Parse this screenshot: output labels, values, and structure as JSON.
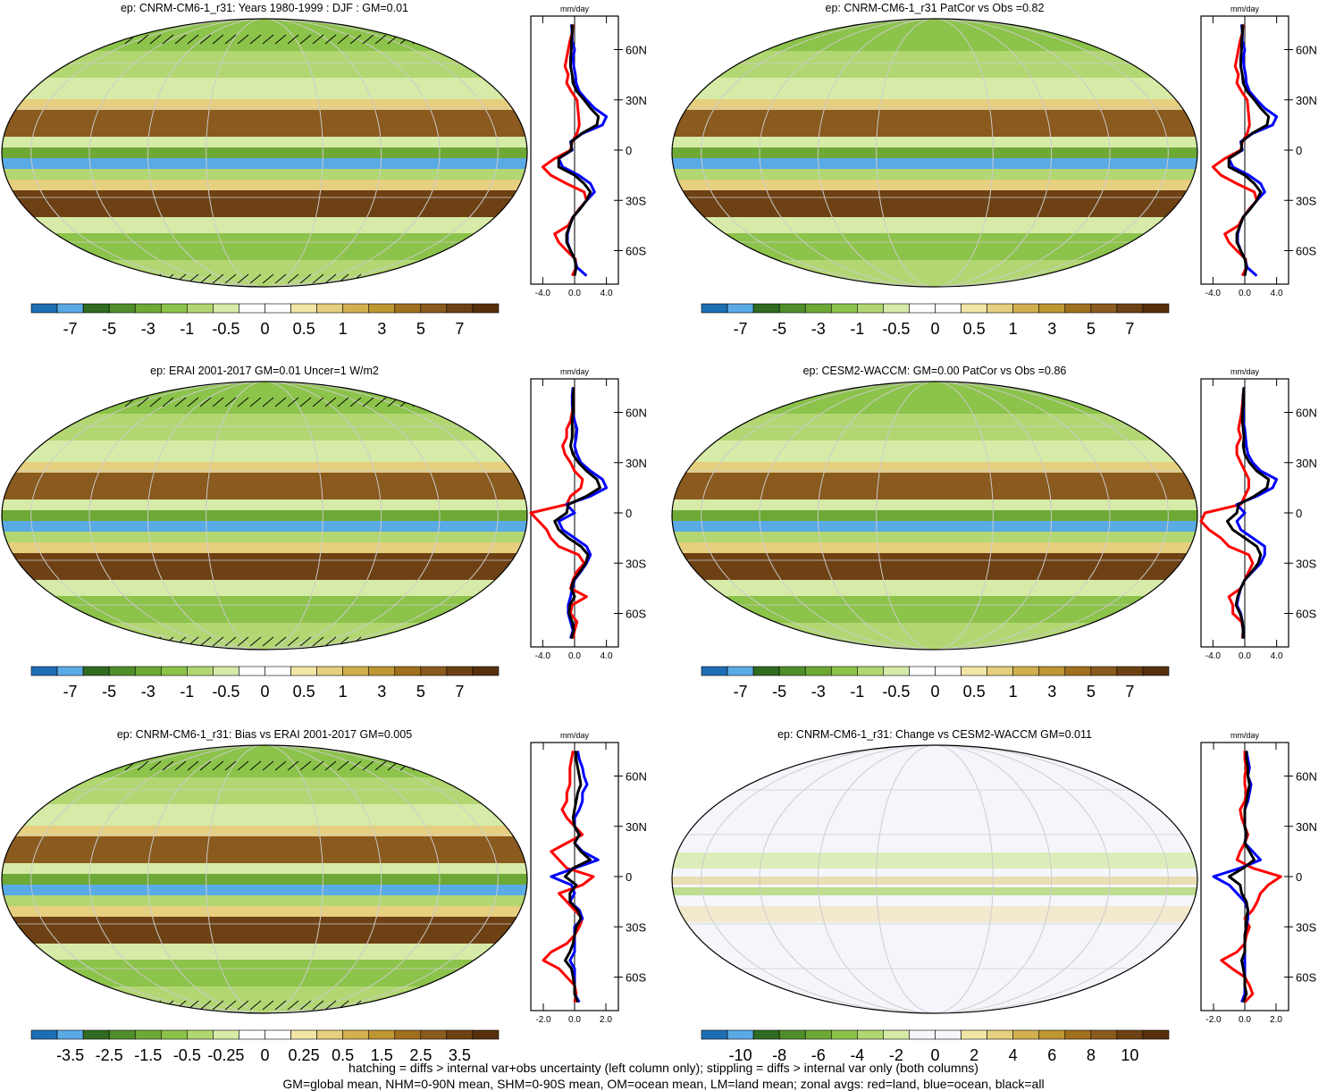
{
  "chart_data": {
    "type": "map_with_zonal_profiles",
    "panels": [
      {
        "title": "ep: CNRM-CM6-1_r31: Years 1980-1999 : DJF : GM=0.01",
        "colorbar_labels": [
          "-7",
          "-5",
          "-3",
          "-1",
          "-0.5",
          "0",
          "0.5",
          "1",
          "3",
          "5",
          "7"
        ],
        "palette": "drywet",
        "hatching": true,
        "profile": {
          "unit_label": "mm/day",
          "xticks": [
            "-4.0",
            "0.0",
            "4.0"
          ],
          "xlim": [
            -5.5,
            5.5
          ],
          "lat_ticks": [
            "60N",
            "30N",
            "0",
            "30S",
            "60S"
          ],
          "ylim": [
            -80,
            80
          ],
          "lat": [
            -75,
            -70,
            -65,
            -60,
            -55,
            -50,
            -45,
            -40,
            -35,
            -30,
            -25,
            -20,
            -15,
            -10,
            -5,
            0,
            5,
            10,
            15,
            20,
            25,
            30,
            35,
            40,
            45,
            50,
            55,
            60,
            65,
            70,
            75
          ],
          "land": [
            -0.3,
            0.2,
            0.1,
            -1.0,
            -2.0,
            -2.5,
            -0.8,
            -0.2,
            0.6,
            1.5,
            1.2,
            -1.0,
            -3.0,
            -4.0,
            -2.5,
            -0.5,
            -0.3,
            0.3,
            0.6,
            0.5,
            0.4,
            0.3,
            -0.4,
            -1.0,
            -0.8,
            -1.2,
            -1.0,
            -0.8,
            -0.6,
            -0.3,
            -0.2
          ],
          "ocean": [
            1.5,
            0.3,
            0.0,
            -0.5,
            -0.9,
            -0.9,
            -0.6,
            -0.2,
            0.7,
            1.5,
            2.5,
            2.0,
            0.5,
            -1.5,
            -2.0,
            -0.3,
            -0.5,
            1.0,
            3.5,
            4.0,
            2.5,
            1.5,
            0.6,
            0.2,
            0.1,
            -0.1,
            -0.2,
            0.0,
            -0.3,
            -0.3,
            -0.4
          ],
          "all": [
            0.0,
            0.2,
            0.0,
            -0.5,
            -1.0,
            -1.0,
            -0.6,
            -0.2,
            0.7,
            1.5,
            2.0,
            1.2,
            0.0,
            -2.0,
            -2.0,
            -0.4,
            -0.4,
            0.9,
            2.8,
            3.0,
            2.0,
            1.2,
            0.3,
            -0.2,
            -0.3,
            -0.5,
            -0.5,
            -0.4,
            -0.4,
            -0.3,
            -0.3
          ]
        }
      },
      {
        "title": "ep: CNRM-CM6-1_r31 PatCor vs Obs =0.82",
        "colorbar_labels": [
          "-7",
          "-5",
          "-3",
          "-1",
          "-0.5",
          "0",
          "0.5",
          "1",
          "3",
          "5",
          "7"
        ],
        "palette": "drywet",
        "hatching": false,
        "profile": {
          "unit_label": "mm/day",
          "xticks": [
            "-4.0",
            "0.0",
            "4.0"
          ],
          "xlim": [
            -5.5,
            5.5
          ],
          "lat_ticks": [
            "60N",
            "30N",
            "0",
            "30S",
            "60S"
          ],
          "ylim": [
            -80,
            80
          ],
          "lat": [
            -75,
            -70,
            -65,
            -60,
            -55,
            -50,
            -45,
            -40,
            -35,
            -30,
            -25,
            -20,
            -15,
            -10,
            -5,
            0,
            5,
            10,
            15,
            20,
            25,
            30,
            35,
            40,
            45,
            50,
            55,
            60,
            65,
            70,
            75
          ],
          "land": [
            -0.3,
            0.2,
            0.1,
            -1.0,
            -2.0,
            -2.5,
            -0.8,
            -0.2,
            0.6,
            1.5,
            1.2,
            -1.0,
            -3.0,
            -4.0,
            -2.5,
            -0.5,
            -0.3,
            0.3,
            0.6,
            0.5,
            0.4,
            0.3,
            -0.4,
            -1.0,
            -0.8,
            -1.2,
            -1.0,
            -0.8,
            -0.6,
            -0.3,
            -0.2
          ],
          "ocean": [
            1.5,
            0.3,
            0.0,
            -0.5,
            -0.9,
            -0.9,
            -0.6,
            -0.2,
            0.7,
            1.5,
            2.5,
            2.0,
            0.5,
            -1.5,
            -2.0,
            -0.3,
            -0.5,
            1.0,
            3.5,
            4.0,
            2.5,
            1.5,
            0.6,
            0.2,
            0.1,
            -0.1,
            -0.2,
            0.0,
            -0.3,
            -0.3,
            -0.4
          ],
          "all": [
            0.0,
            0.2,
            0.0,
            -0.5,
            -1.0,
            -1.0,
            -0.6,
            -0.2,
            0.7,
            1.5,
            2.0,
            1.2,
            0.0,
            -2.0,
            -2.0,
            -0.4,
            -0.4,
            0.9,
            2.8,
            3.0,
            2.0,
            1.2,
            0.3,
            -0.2,
            -0.3,
            -0.5,
            -0.5,
            -0.4,
            -0.4,
            -0.3,
            -0.3
          ]
        }
      },
      {
        "title": "ep: ERAI 2001-2017 GM=0.01 Uncer=1 W/m2",
        "colorbar_labels": [
          "-7",
          "-5",
          "-3",
          "-1",
          "-0.5",
          "0",
          "0.5",
          "1",
          "3",
          "5",
          "7"
        ],
        "palette": "drywet",
        "hatching": true,
        "profile": {
          "unit_label": "mm/day",
          "xticks": [
            "-4.0",
            "0.0",
            "4.0"
          ],
          "xlim": [
            -5.5,
            5.5
          ],
          "lat_ticks": [
            "60N",
            "30N",
            "0",
            "30S",
            "60S"
          ],
          "ylim": [
            -80,
            80
          ],
          "lat": [
            -75,
            -70,
            -65,
            -60,
            -55,
            -50,
            -45,
            -40,
            -35,
            -30,
            -25,
            -20,
            -15,
            -10,
            -5,
            0,
            5,
            10,
            15,
            20,
            25,
            30,
            35,
            40,
            45,
            50,
            55,
            60,
            65,
            70,
            75
          ],
          "land": [
            -0.2,
            0.0,
            0.3,
            -0.5,
            -0.3,
            1.5,
            -0.5,
            -0.2,
            0.3,
            1.2,
            0.5,
            -2.0,
            -3.0,
            -3.5,
            -4.5,
            -5.5,
            -1.0,
            -0.5,
            0.8,
            1.0,
            0.0,
            -0.5,
            -1.2,
            -1.5,
            -1.0,
            -1.0,
            -0.5,
            -0.3,
            -0.2,
            -0.2,
            -0.1
          ],
          "ocean": [
            -0.5,
            -0.2,
            -0.5,
            -0.8,
            -0.8,
            -0.5,
            -0.3,
            0.0,
            0.8,
            1.5,
            2.0,
            1.5,
            0.0,
            -1.5,
            -2.0,
            0.0,
            -1.0,
            2.0,
            4.0,
            3.5,
            2.0,
            0.8,
            0.3,
            0.0,
            0.2,
            0.3,
            0.0,
            -0.2,
            -0.3,
            -0.3,
            -0.2
          ],
          "all": [
            -0.4,
            -0.1,
            -0.3,
            -0.7,
            -0.6,
            0.0,
            -0.4,
            -0.1,
            0.7,
            1.4,
            1.7,
            0.8,
            -0.8,
            -2.0,
            -2.5,
            -1.0,
            -0.8,
            1.5,
            3.2,
            2.8,
            1.5,
            0.5,
            -0.2,
            -0.5,
            -0.3,
            -0.3,
            -0.3,
            -0.2,
            -0.2,
            -0.2,
            -0.1
          ]
        }
      },
      {
        "title": "ep: CESM2-WACCM: GM=0.00 PatCor vs Obs =0.86",
        "colorbar_labels": [
          "-7",
          "-5",
          "-3",
          "-1",
          "-0.5",
          "0",
          "0.5",
          "1",
          "3",
          "5",
          "7"
        ],
        "palette": "drywet",
        "hatching": false,
        "profile": {
          "unit_label": "mm/day",
          "xticks": [
            "-4.0",
            "0.0",
            "4.0"
          ],
          "xlim": [
            -5.5,
            5.5
          ],
          "lat_ticks": [
            "60N",
            "30N",
            "0",
            "30S",
            "60S"
          ],
          "ylim": [
            -80,
            80
          ],
          "lat": [
            -75,
            -70,
            -65,
            -60,
            -55,
            -50,
            -45,
            -40,
            -35,
            -30,
            -25,
            -20,
            -15,
            -10,
            -5,
            0,
            5,
            10,
            15,
            20,
            25,
            30,
            35,
            40,
            45,
            50,
            55,
            60,
            65,
            70,
            75
          ],
          "land": [
            -0.3,
            -0.2,
            -0.4,
            -1.5,
            -1.5,
            -2.0,
            -0.5,
            0.0,
            0.5,
            1.0,
            0.5,
            -2.0,
            -3.0,
            -4.5,
            -5.5,
            -5.0,
            -0.5,
            0.0,
            0.5,
            0.5,
            0.0,
            -0.5,
            -1.0,
            -1.0,
            -0.5,
            -0.8,
            -0.6,
            -0.4,
            -0.3,
            -0.2,
            -0.1
          ],
          "ocean": [
            -0.2,
            -0.2,
            -0.3,
            -0.5,
            -1.0,
            -0.8,
            -0.5,
            0.0,
            1.0,
            2.0,
            2.5,
            2.5,
            1.0,
            -0.5,
            -1.0,
            0.0,
            -1.0,
            1.5,
            3.5,
            4.0,
            2.0,
            1.0,
            0.4,
            0.2,
            0.1,
            0.0,
            -0.2,
            -0.2,
            -0.2,
            -0.2,
            -0.1
          ],
          "all": [
            -0.2,
            -0.2,
            -0.3,
            -0.6,
            -1.1,
            -0.9,
            -0.5,
            0.0,
            0.9,
            1.7,
            2.0,
            1.5,
            0.0,
            -1.5,
            -2.2,
            -1.0,
            -0.8,
            1.2,
            2.8,
            3.0,
            1.5,
            0.6,
            0.0,
            -0.2,
            -0.1,
            -0.2,
            -0.3,
            -0.3,
            -0.2,
            -0.2,
            -0.1
          ]
        }
      },
      {
        "title": "ep: CNRM-CM6-1_r31: Bias vs ERAI 2001-2017 GM=0.005",
        "colorbar_labels": [
          "-3.5",
          "-2.5",
          "-1.5",
          "-0.5",
          "-0.25",
          "0",
          "0.25",
          "0.5",
          "1.5",
          "2.5",
          "3.5"
        ],
        "palette": "drywet",
        "hatching": true,
        "profile": {
          "unit_label": "mm/day",
          "xticks": [
            "-2.0",
            "0.0",
            "2.0"
          ],
          "xlim": [
            -2.8,
            2.8
          ],
          "lat_ticks": [
            "60N",
            "30N",
            "0",
            "30S",
            "60S"
          ],
          "ylim": [
            -80,
            80
          ],
          "lat": [
            -75,
            -70,
            -65,
            -60,
            -55,
            -50,
            -45,
            -40,
            -35,
            -30,
            -25,
            -20,
            -15,
            -10,
            -5,
            0,
            5,
            10,
            15,
            20,
            25,
            30,
            35,
            40,
            45,
            50,
            55,
            60,
            65,
            70,
            75
          ],
          "land": [
            0.0,
            0.1,
            0.0,
            -0.5,
            -1.0,
            -2.0,
            -1.5,
            -0.5,
            0.0,
            0.3,
            0.5,
            0.0,
            -0.5,
            -1.0,
            0.5,
            1.2,
            -0.5,
            -1.0,
            -1.5,
            -0.5,
            0.5,
            0.0,
            -0.5,
            -0.8,
            -0.5,
            -0.5,
            -0.3,
            -0.3,
            -0.3,
            -0.2,
            -0.1
          ],
          "ocean": [
            0.3,
            0.0,
            0.0,
            0.0,
            0.0,
            -0.3,
            0.0,
            0.0,
            0.0,
            0.0,
            0.5,
            0.3,
            -0.3,
            0.0,
            -0.2,
            -1.5,
            0.0,
            1.5,
            0.5,
            0.0,
            0.3,
            0.0,
            0.0,
            0.3,
            0.5,
            0.5,
            0.8,
            0.6,
            0.5,
            0.3,
            0.2
          ],
          "all": [
            0.2,
            0.0,
            0.0,
            -0.1,
            -0.2,
            -0.6,
            -0.3,
            -0.1,
            0.0,
            0.1,
            0.4,
            0.2,
            -0.3,
            -0.3,
            0.1,
            -0.6,
            -0.1,
            1.0,
            0.4,
            0.0,
            0.3,
            0.0,
            -0.1,
            0.0,
            0.1,
            0.2,
            0.4,
            0.3,
            0.2,
            0.1,
            0.1
          ]
        }
      },
      {
        "title": "ep: CNRM-CM6-1_r31: Change vs CESM2-WACCM GM=0.011",
        "colorbar_labels": [
          "-10",
          "-8",
          "-6",
          "-4",
          "-2",
          "0",
          "2",
          "4",
          "6",
          "8",
          "10"
        ],
        "palette": "change",
        "hatching": false,
        "profile": {
          "unit_label": "mm/day",
          "xticks": [
            "-2.0",
            "0.0",
            "2.0"
          ],
          "xlim": [
            -2.8,
            2.8
          ],
          "lat_ticks": [
            "60N",
            "30N",
            "0",
            "30S",
            "60S"
          ],
          "ylim": [
            -80,
            80
          ],
          "lat": [
            -75,
            -70,
            -65,
            -60,
            -55,
            -50,
            -45,
            -40,
            -35,
            -30,
            -25,
            -20,
            -15,
            -10,
            -5,
            0,
            5,
            10,
            15,
            20,
            25,
            30,
            35,
            40,
            45,
            50,
            55,
            60,
            65,
            70,
            75
          ],
          "land": [
            0.0,
            0.5,
            0.3,
            0.0,
            -0.8,
            -1.5,
            -0.5,
            0.0,
            0.1,
            0.3,
            0.0,
            0.5,
            0.8,
            1.0,
            1.5,
            2.3,
            0.5,
            -0.5,
            -0.3,
            0.0,
            0.2,
            0.0,
            -0.2,
            -0.3,
            0.0,
            0.1,
            0.0,
            0.0,
            0.1,
            0.0,
            0.0
          ],
          "ocean": [
            -0.2,
            0.0,
            0.0,
            0.0,
            0.0,
            0.0,
            0.0,
            0.0,
            0.0,
            0.1,
            0.2,
            0.2,
            0.0,
            -0.5,
            -1.0,
            -2.0,
            -0.3,
            1.0,
            0.5,
            0.0,
            0.1,
            0.0,
            0.0,
            0.0,
            0.2,
            0.3,
            0.4,
            0.2,
            0.3,
            0.2,
            0.1
          ],
          "all": [
            -0.1,
            0.1,
            0.0,
            0.0,
            -0.1,
            -0.2,
            0.0,
            0.0,
            0.0,
            0.1,
            0.1,
            0.2,
            0.1,
            -0.2,
            -0.3,
            -1.0,
            -0.1,
            0.6,
            0.3,
            0.0,
            0.1,
            0.0,
            0.0,
            0.0,
            0.1,
            0.2,
            0.3,
            0.2,
            0.2,
            0.1,
            0.1
          ]
        }
      }
    ],
    "series": [
      {
        "name": "red=land",
        "color": "#ff0000"
      },
      {
        "name": "blue=ocean",
        "color": "#0000ff"
      },
      {
        "name": "black=all",
        "color": "#000000"
      }
    ],
    "palettes": {
      "drywet": [
        "#1e6eb4",
        "#5aaae6",
        "#2f6b20",
        "#4f8f2a",
        "#6ea936",
        "#8cc34a",
        "#b2d772",
        "#d6eba8",
        "#ffffff",
        "#ffffff",
        "#f2e6a6",
        "#e6cf7e",
        "#d2b050",
        "#be9632",
        "#a0701e",
        "#8a5a1e",
        "#6e4114",
        "#56300c"
      ],
      "change": [
        "#1e6eb4",
        "#5aaae6",
        "#2f6b20",
        "#4f8f2a",
        "#6ea936",
        "#8cc34a",
        "#b2d772",
        "#d6eba8",
        "#f4f6fc",
        "#f4f6fc",
        "#f2e6a6",
        "#e6cf7e",
        "#d2b050",
        "#be9632",
        "#a0701e",
        "#8a5a1e",
        "#6e4114",
        "#56300c"
      ]
    }
  },
  "footer": {
    "line1": "hatching = diffs > internal var+obs uncertainty (left column only); stippling = diffs > internal var only (both columns)",
    "line2": "GM=global mean, NHM=0-90N mean, SHM=0-90S mean, OM=ocean mean, LM=land mean; zonal avgs: red=land, blue=ocean, black=all"
  }
}
